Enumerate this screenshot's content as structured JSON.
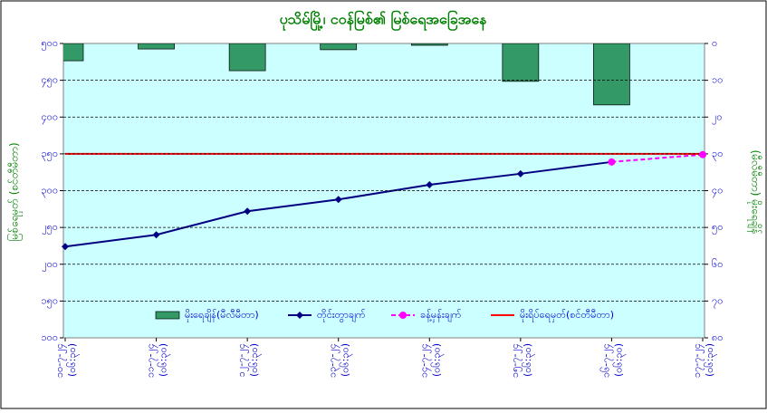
{
  "chart_data": {
    "type": "line",
    "title": "ပုသိမ်မြို့၊ ငဝန်မြစ်၏ မြစ်ရေအခြေအနေ",
    "y_label": "မြစ်ရေမှတ် (စင်တီမီတာ)",
    "y2_label": "(မီလီမီတာ) မိုးရေချိန်",
    "categories": [
      "၁၀-၇-၂၄",
      "၁၁-၇-၂၄",
      "၁၂-၇-၂၄",
      "၁၃-၇-၂၄",
      "၁၄-၇-၂၄",
      "၁၅-၇-၂၄",
      "၁၆-၇-၂၄",
      "၁၇-၇-၂၄"
    ],
    "category_times": [
      "(၀၆:၃၀)",
      "(၀၆:၃၀)",
      "(၀၆:၃၀)",
      "(၀၆:၃၀)",
      "(၀၆:၃၀)",
      "(၀၆:၃၀)",
      "(၀၆:၃၀)",
      "(၀၆:၃၀)"
    ],
    "series": [
      {
        "name": "မိုးရေချိန်(မီလီမီတာ)",
        "type": "bar",
        "axis": "y2",
        "color": "#339966",
        "values": [
          4.7,
          1.5,
          7.4,
          1.7,
          0.5,
          10.3,
          16.7,
          null
        ]
      },
      {
        "name": "တိုင်းတွာချက်",
        "type": "line",
        "color": "#000080",
        "marker": "diamond",
        "values": [
          224,
          240,
          272,
          288,
          308,
          323,
          339,
          null
        ]
      },
      {
        "name": "ခန့်မှန်းချက်",
        "type": "line",
        "color": "#ff00ff",
        "marker": "circle",
        "dashed": true,
        "values": [
          null,
          null,
          null,
          null,
          null,
          null,
          339,
          349
        ]
      },
      {
        "name": "မိုးရိပ်ရေမှတ်(စင်တီမီတာ)",
        "type": "line",
        "color": "#ff0000",
        "values": [
          350,
          350,
          350,
          350,
          350,
          350,
          350,
          350
        ]
      }
    ],
    "ylim": [
      100,
      500
    ],
    "yticks": [
      {
        "value": 100,
        "label": "၁၀၀"
      },
      {
        "value": 150,
        "label": "၁၅၀"
      },
      {
        "value": 200,
        "label": "၂၀၀"
      },
      {
        "value": 250,
        "label": "၂၅၀"
      },
      {
        "value": 300,
        "label": "၃၀၀"
      },
      {
        "value": 350,
        "label": "၃၅၀"
      },
      {
        "value": 400,
        "label": "၄၀၀"
      },
      {
        "value": 450,
        "label": "၄၅၀"
      },
      {
        "value": 500,
        "label": "၅၀၀"
      }
    ],
    "y2lim": [
      80,
      0
    ],
    "y2ticks": [
      {
        "value": 0,
        "label": "၀"
      },
      {
        "value": 10,
        "label": "၁၀"
      },
      {
        "value": 20,
        "label": "၂၀"
      },
      {
        "value": 30,
        "label": "၃၀"
      },
      {
        "value": 40,
        "label": "၄၀"
      },
      {
        "value": 50,
        "label": "၅၀"
      },
      {
        "value": 60,
        "label": "၆၀"
      },
      {
        "value": 70,
        "label": "၇၀"
      },
      {
        "value": 80,
        "label": "၈၀"
      }
    ],
    "grid": true,
    "legend": "bottom"
  }
}
